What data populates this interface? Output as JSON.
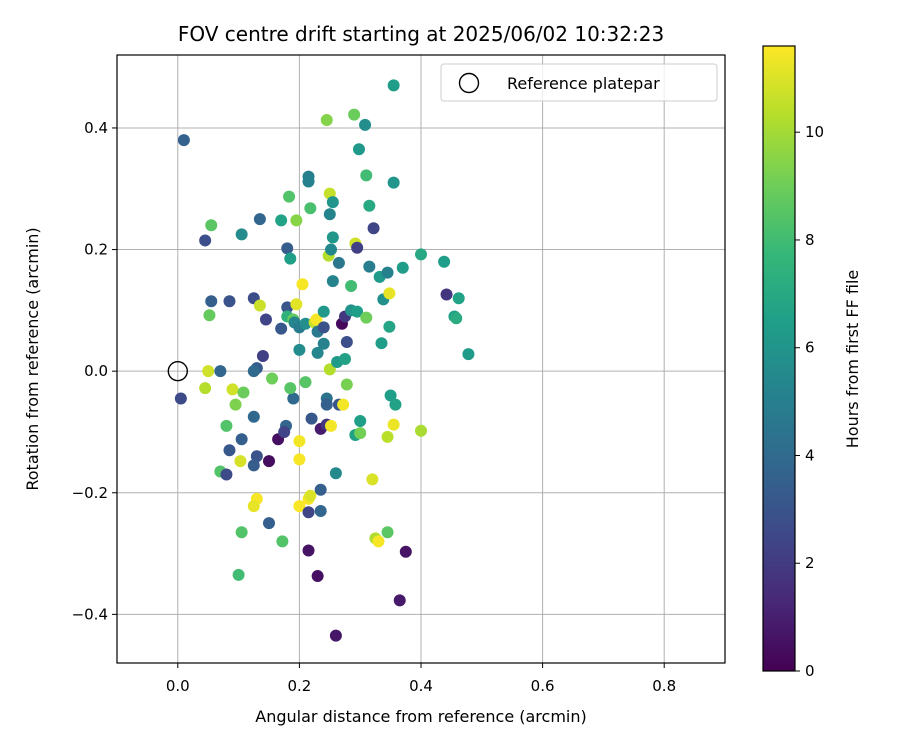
{
  "chart_data": {
    "type": "scatter",
    "title": "FOV centre drift starting at 2025/06/02 10:32:23",
    "xlabel": "Angular distance from reference (arcmin)",
    "ylabel": "Rotation from reference (arcmin)",
    "xlim": [
      -0.1,
      0.9
    ],
    "ylim": [
      -0.48,
      0.52
    ],
    "xticks": [
      0.0,
      0.2,
      0.4,
      0.6,
      0.8
    ],
    "xtick_labels": [
      "0.0",
      "0.2",
      "0.4",
      "0.6",
      "0.8"
    ],
    "yticks": [
      -0.4,
      -0.2,
      0.0,
      0.2,
      0.4
    ],
    "ytick_labels": [
      "−0.4",
      "−0.2",
      "0.0",
      "0.2",
      "0.4"
    ],
    "grid": true,
    "legend": {
      "label": "Reference platepar",
      "placement": "top-right"
    },
    "reference_point": {
      "x": 0.0,
      "y": 0.0
    },
    "colorbar": {
      "label": "Hours from first FF file",
      "colormap": "viridis",
      "range": [
        0,
        11.6
      ],
      "ticks": [
        0,
        2,
        4,
        6,
        8,
        10
      ],
      "tick_labels": [
        "0",
        "2",
        "4",
        "6",
        "8",
        "10"
      ]
    },
    "colormap_stops": [
      "#440154",
      "#482878",
      "#3e4a89",
      "#31688e",
      "#26828e",
      "#1f9e89",
      "#35b779",
      "#6ece58",
      "#b5de2b",
      "#fde725"
    ],
    "points": [
      {
        "x": 0.01,
        "y": 0.38,
        "h": 3.6
      },
      {
        "x": 0.045,
        "y": 0.215,
        "h": 2.8
      },
      {
        "x": 0.055,
        "y": 0.24,
        "h": 8.6
      },
      {
        "x": 0.055,
        "y": 0.115,
        "h": 3.5
      },
      {
        "x": 0.052,
        "y": 0.092,
        "h": 8.8
      },
      {
        "x": 0.05,
        "y": 0.0,
        "h": 10.8
      },
      {
        "x": 0.045,
        "y": -0.028,
        "h": 10.3
      },
      {
        "x": 0.005,
        "y": -0.045,
        "h": 2.6
      },
      {
        "x": 0.07,
        "y": 0.0,
        "h": 3.8
      },
      {
        "x": 0.085,
        "y": 0.115,
        "h": 3.0
      },
      {
        "x": 0.09,
        "y": -0.03,
        "h": 10.8
      },
      {
        "x": 0.095,
        "y": -0.055,
        "h": 9.3
      },
      {
        "x": 0.08,
        "y": -0.09,
        "h": 8.4
      },
      {
        "x": 0.085,
        "y": -0.13,
        "h": 3.2
      },
      {
        "x": 0.07,
        "y": -0.165,
        "h": 8.4
      },
      {
        "x": 0.08,
        "y": -0.17,
        "h": 2.6
      },
      {
        "x": 0.105,
        "y": 0.225,
        "h": 5.6
      },
      {
        "x": 0.108,
        "y": -0.035,
        "h": 8.9
      },
      {
        "x": 0.105,
        "y": -0.112,
        "h": 3.5
      },
      {
        "x": 0.103,
        "y": -0.148,
        "h": 10.9
      },
      {
        "x": 0.105,
        "y": -0.265,
        "h": 8.4
      },
      {
        "x": 0.1,
        "y": -0.335,
        "h": 8.0
      },
      {
        "x": 0.135,
        "y": 0.25,
        "h": 3.8
      },
      {
        "x": 0.125,
        "y": 0.12,
        "h": 2.7
      },
      {
        "x": 0.135,
        "y": 0.108,
        "h": 10.7
      },
      {
        "x": 0.145,
        "y": 0.085,
        "h": 2.4
      },
      {
        "x": 0.14,
        "y": 0.025,
        "h": 2.2
      },
      {
        "x": 0.13,
        "y": 0.005,
        "h": 3.3
      },
      {
        "x": 0.125,
        "y": 0.0,
        "h": 4.0
      },
      {
        "x": 0.125,
        "y": -0.075,
        "h": 3.9
      },
      {
        "x": 0.13,
        "y": -0.14,
        "h": 2.9
      },
      {
        "x": 0.125,
        "y": -0.155,
        "h": 3.4
      },
      {
        "x": 0.15,
        "y": -0.148,
        "h": 0.4
      },
      {
        "x": 0.13,
        "y": -0.21,
        "h": 11.5
      },
      {
        "x": 0.125,
        "y": -0.222,
        "h": 11.2
      },
      {
        "x": 0.155,
        "y": -0.012,
        "h": 9.0
      },
      {
        "x": 0.165,
        "y": -0.112,
        "h": 0.5
      },
      {
        "x": 0.15,
        "y": -0.25,
        "h": 3.5
      },
      {
        "x": 0.17,
        "y": 0.07,
        "h": 3.2
      },
      {
        "x": 0.17,
        "y": 0.248,
        "h": 6.7
      },
      {
        "x": 0.172,
        "y": -0.28,
        "h": 8.4
      },
      {
        "x": 0.18,
        "y": 0.105,
        "h": 3.1
      },
      {
        "x": 0.18,
        "y": 0.09,
        "h": 7.5
      },
      {
        "x": 0.18,
        "y": 0.202,
        "h": 3.4
      },
      {
        "x": 0.183,
        "y": 0.287,
        "h": 8.4
      },
      {
        "x": 0.185,
        "y": 0.185,
        "h": 6.5
      },
      {
        "x": 0.178,
        "y": -0.09,
        "h": 3.8
      },
      {
        "x": 0.175,
        "y": -0.1,
        "h": 2.4
      },
      {
        "x": 0.19,
        "y": -0.045,
        "h": 3.9
      },
      {
        "x": 0.185,
        "y": -0.028,
        "h": 8.5
      },
      {
        "x": 0.195,
        "y": 0.11,
        "h": 11.1
      },
      {
        "x": 0.19,
        "y": 0.085,
        "h": 8.8
      },
      {
        "x": 0.192,
        "y": 0.08,
        "h": 5.4
      },
      {
        "x": 0.2,
        "y": 0.072,
        "h": 4.8
      },
      {
        "x": 0.195,
        "y": 0.248,
        "h": 9.5
      },
      {
        "x": 0.2,
        "y": 0.035,
        "h": 5.6
      },
      {
        "x": 0.2,
        "y": -0.115,
        "h": 11.4
      },
      {
        "x": 0.2,
        "y": -0.145,
        "h": 11.5
      },
      {
        "x": 0.2,
        "y": -0.222,
        "h": 11.5
      },
      {
        "x": 0.205,
        "y": 0.143,
        "h": 11.5
      },
      {
        "x": 0.21,
        "y": 0.078,
        "h": 5.7
      },
      {
        "x": 0.21,
        "y": -0.018,
        "h": 8.5
      },
      {
        "x": 0.215,
        "y": 0.32,
        "h": 5.0
      },
      {
        "x": 0.215,
        "y": 0.312,
        "h": 5.1
      },
      {
        "x": 0.218,
        "y": 0.268,
        "h": 8.2
      },
      {
        "x": 0.215,
        "y": -0.21,
        "h": 11.5
      },
      {
        "x": 0.218,
        "y": -0.205,
        "h": 11.0
      },
      {
        "x": 0.215,
        "y": -0.232,
        "h": 2.4
      },
      {
        "x": 0.215,
        "y": -0.295,
        "h": 0.6
      },
      {
        "x": 0.22,
        "y": -0.078,
        "h": 3.2
      },
      {
        "x": 0.225,
        "y": 0.08,
        "h": 10.6
      },
      {
        "x": 0.228,
        "y": 0.085,
        "h": 11.5
      },
      {
        "x": 0.23,
        "y": 0.03,
        "h": 5.4
      },
      {
        "x": 0.23,
        "y": 0.065,
        "h": 4.7
      },
      {
        "x": 0.235,
        "y": -0.195,
        "h": 3.5
      },
      {
        "x": 0.235,
        "y": -0.23,
        "h": 3.8
      },
      {
        "x": 0.23,
        "y": -0.337,
        "h": 0.5
      },
      {
        "x": 0.235,
        "y": -0.095,
        "h": 0.9
      },
      {
        "x": 0.24,
        "y": 0.045,
        "h": 5.2
      },
      {
        "x": 0.24,
        "y": 0.072,
        "h": 2.9
      },
      {
        "x": 0.24,
        "y": 0.098,
        "h": 6.2
      },
      {
        "x": 0.245,
        "y": 0.413,
        "h": 9.4
      },
      {
        "x": 0.245,
        "y": -0.045,
        "h": 4.4
      },
      {
        "x": 0.245,
        "y": -0.055,
        "h": 3.5
      },
      {
        "x": 0.245,
        "y": -0.088,
        "h": 1.9
      },
      {
        "x": 0.248,
        "y": 0.19,
        "h": 10.3
      },
      {
        "x": 0.25,
        "y": 0.292,
        "h": 10.6
      },
      {
        "x": 0.25,
        "y": 0.258,
        "h": 5.3
      },
      {
        "x": 0.252,
        "y": 0.2,
        "h": 5.5
      },
      {
        "x": 0.25,
        "y": 0.003,
        "h": 10.3
      },
      {
        "x": 0.252,
        "y": -0.09,
        "h": 11.4
      },
      {
        "x": 0.255,
        "y": 0.278,
        "h": 6.0
      },
      {
        "x": 0.255,
        "y": 0.22,
        "h": 6.1
      },
      {
        "x": 0.255,
        "y": 0.148,
        "h": 5.2
      },
      {
        "x": 0.26,
        "y": -0.168,
        "h": 5.5
      },
      {
        "x": 0.26,
        "y": -0.435,
        "h": 0.7
      },
      {
        "x": 0.262,
        "y": 0.015,
        "h": 6.3
      },
      {
        "x": 0.265,
        "y": 0.178,
        "h": 4.6
      },
      {
        "x": 0.265,
        "y": -0.055,
        "h": 3.1
      },
      {
        "x": 0.27,
        "y": 0.078,
        "h": 0.3
      },
      {
        "x": 0.272,
        "y": -0.055,
        "h": 11.4
      },
      {
        "x": 0.275,
        "y": 0.02,
        "h": 6.6
      },
      {
        "x": 0.275,
        "y": 0.09,
        "h": 1.9
      },
      {
        "x": 0.278,
        "y": 0.048,
        "h": 2.8
      },
      {
        "x": 0.278,
        "y": -0.022,
        "h": 9.2
      },
      {
        "x": 0.285,
        "y": 0.14,
        "h": 8.0
      },
      {
        "x": 0.285,
        "y": 0.1,
        "h": 5.9
      },
      {
        "x": 0.29,
        "y": 0.422,
        "h": 8.9
      },
      {
        "x": 0.292,
        "y": 0.21,
        "h": 10.8
      },
      {
        "x": 0.292,
        "y": -0.105,
        "h": 6.6
      },
      {
        "x": 0.295,
        "y": 0.203,
        "h": 2.2
      },
      {
        "x": 0.295,
        "y": 0.098,
        "h": 6.5
      },
      {
        "x": 0.298,
        "y": 0.365,
        "h": 6.2
      },
      {
        "x": 0.3,
        "y": -0.082,
        "h": 6.5
      },
      {
        "x": 0.3,
        "y": -0.102,
        "h": 9.1
      },
      {
        "x": 0.308,
        "y": 0.405,
        "h": 5.7
      },
      {
        "x": 0.31,
        "y": 0.322,
        "h": 8.0
      },
      {
        "x": 0.31,
        "y": 0.088,
        "h": 9.0
      },
      {
        "x": 0.315,
        "y": 0.272,
        "h": 7.0
      },
      {
        "x": 0.315,
        "y": 0.172,
        "h": 4.9
      },
      {
        "x": 0.32,
        "y": -0.178,
        "h": 11.0
      },
      {
        "x": 0.322,
        "y": 0.235,
        "h": 2.4
      },
      {
        "x": 0.325,
        "y": -0.275,
        "h": 10.2
      },
      {
        "x": 0.33,
        "y": -0.28,
        "h": 11.5
      },
      {
        "x": 0.332,
        "y": 0.155,
        "h": 6.3
      },
      {
        "x": 0.335,
        "y": 0.046,
        "h": 6.4
      },
      {
        "x": 0.338,
        "y": 0.118,
        "h": 5.8
      },
      {
        "x": 0.345,
        "y": 0.162,
        "h": 5.1
      },
      {
        "x": 0.345,
        "y": -0.108,
        "h": 10.4
      },
      {
        "x": 0.345,
        "y": -0.265,
        "h": 8.6
      },
      {
        "x": 0.348,
        "y": 0.128,
        "h": 11.2
      },
      {
        "x": 0.348,
        "y": 0.073,
        "h": 6.8
      },
      {
        "x": 0.35,
        "y": -0.04,
        "h": 6.5
      },
      {
        "x": 0.355,
        "y": 0.47,
        "h": 6.4
      },
      {
        "x": 0.355,
        "y": 0.31,
        "h": 6.0
      },
      {
        "x": 0.355,
        "y": -0.088,
        "h": 11.3
      },
      {
        "x": 0.358,
        "y": -0.055,
        "h": 6.6
      },
      {
        "x": 0.365,
        "y": -0.377,
        "h": 0.8
      },
      {
        "x": 0.37,
        "y": 0.17,
        "h": 6.4
      },
      {
        "x": 0.375,
        "y": -0.297,
        "h": 0.6
      },
      {
        "x": 0.4,
        "y": 0.192,
        "h": 6.9
      },
      {
        "x": 0.4,
        "y": -0.098,
        "h": 10.1
      },
      {
        "x": 0.438,
        "y": 0.18,
        "h": 6.4
      },
      {
        "x": 0.442,
        "y": 0.126,
        "h": 1.8
      },
      {
        "x": 0.455,
        "y": 0.09,
        "h": 6.6
      },
      {
        "x": 0.458,
        "y": 0.087,
        "h": 7.1
      },
      {
        "x": 0.462,
        "y": 0.12,
        "h": 6.7
      },
      {
        "x": 0.478,
        "y": 0.028,
        "h": 6.3
      }
    ]
  }
}
